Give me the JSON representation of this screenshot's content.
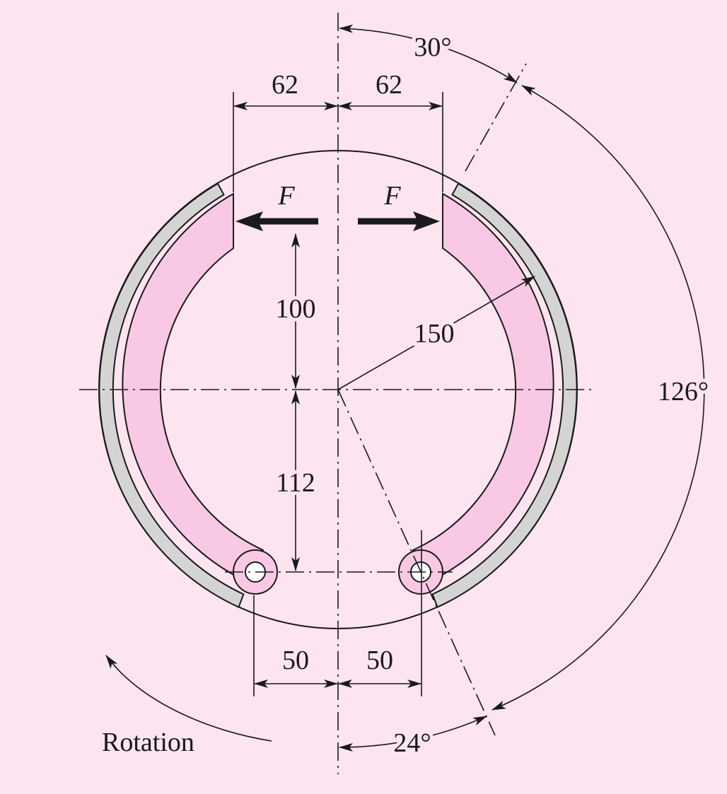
{
  "labels": {
    "force_left": "F",
    "force_right": "F",
    "dim_top_left": "62",
    "dim_top_right": "62",
    "dim_bottom_left": "50",
    "dim_bottom_right": "50",
    "dim_upper_vertical": "100",
    "dim_lower_vertical": "112",
    "radius": "150",
    "angle_top": "30°",
    "angle_side": "126°",
    "angle_bottom": "24°",
    "rotation": "Rotation"
  },
  "colors": {
    "background": "#fce4f0",
    "shoe_fill": "#f9c8e4",
    "lining_fill": "#d4d4d4",
    "line": "#1a1a1a"
  }
}
